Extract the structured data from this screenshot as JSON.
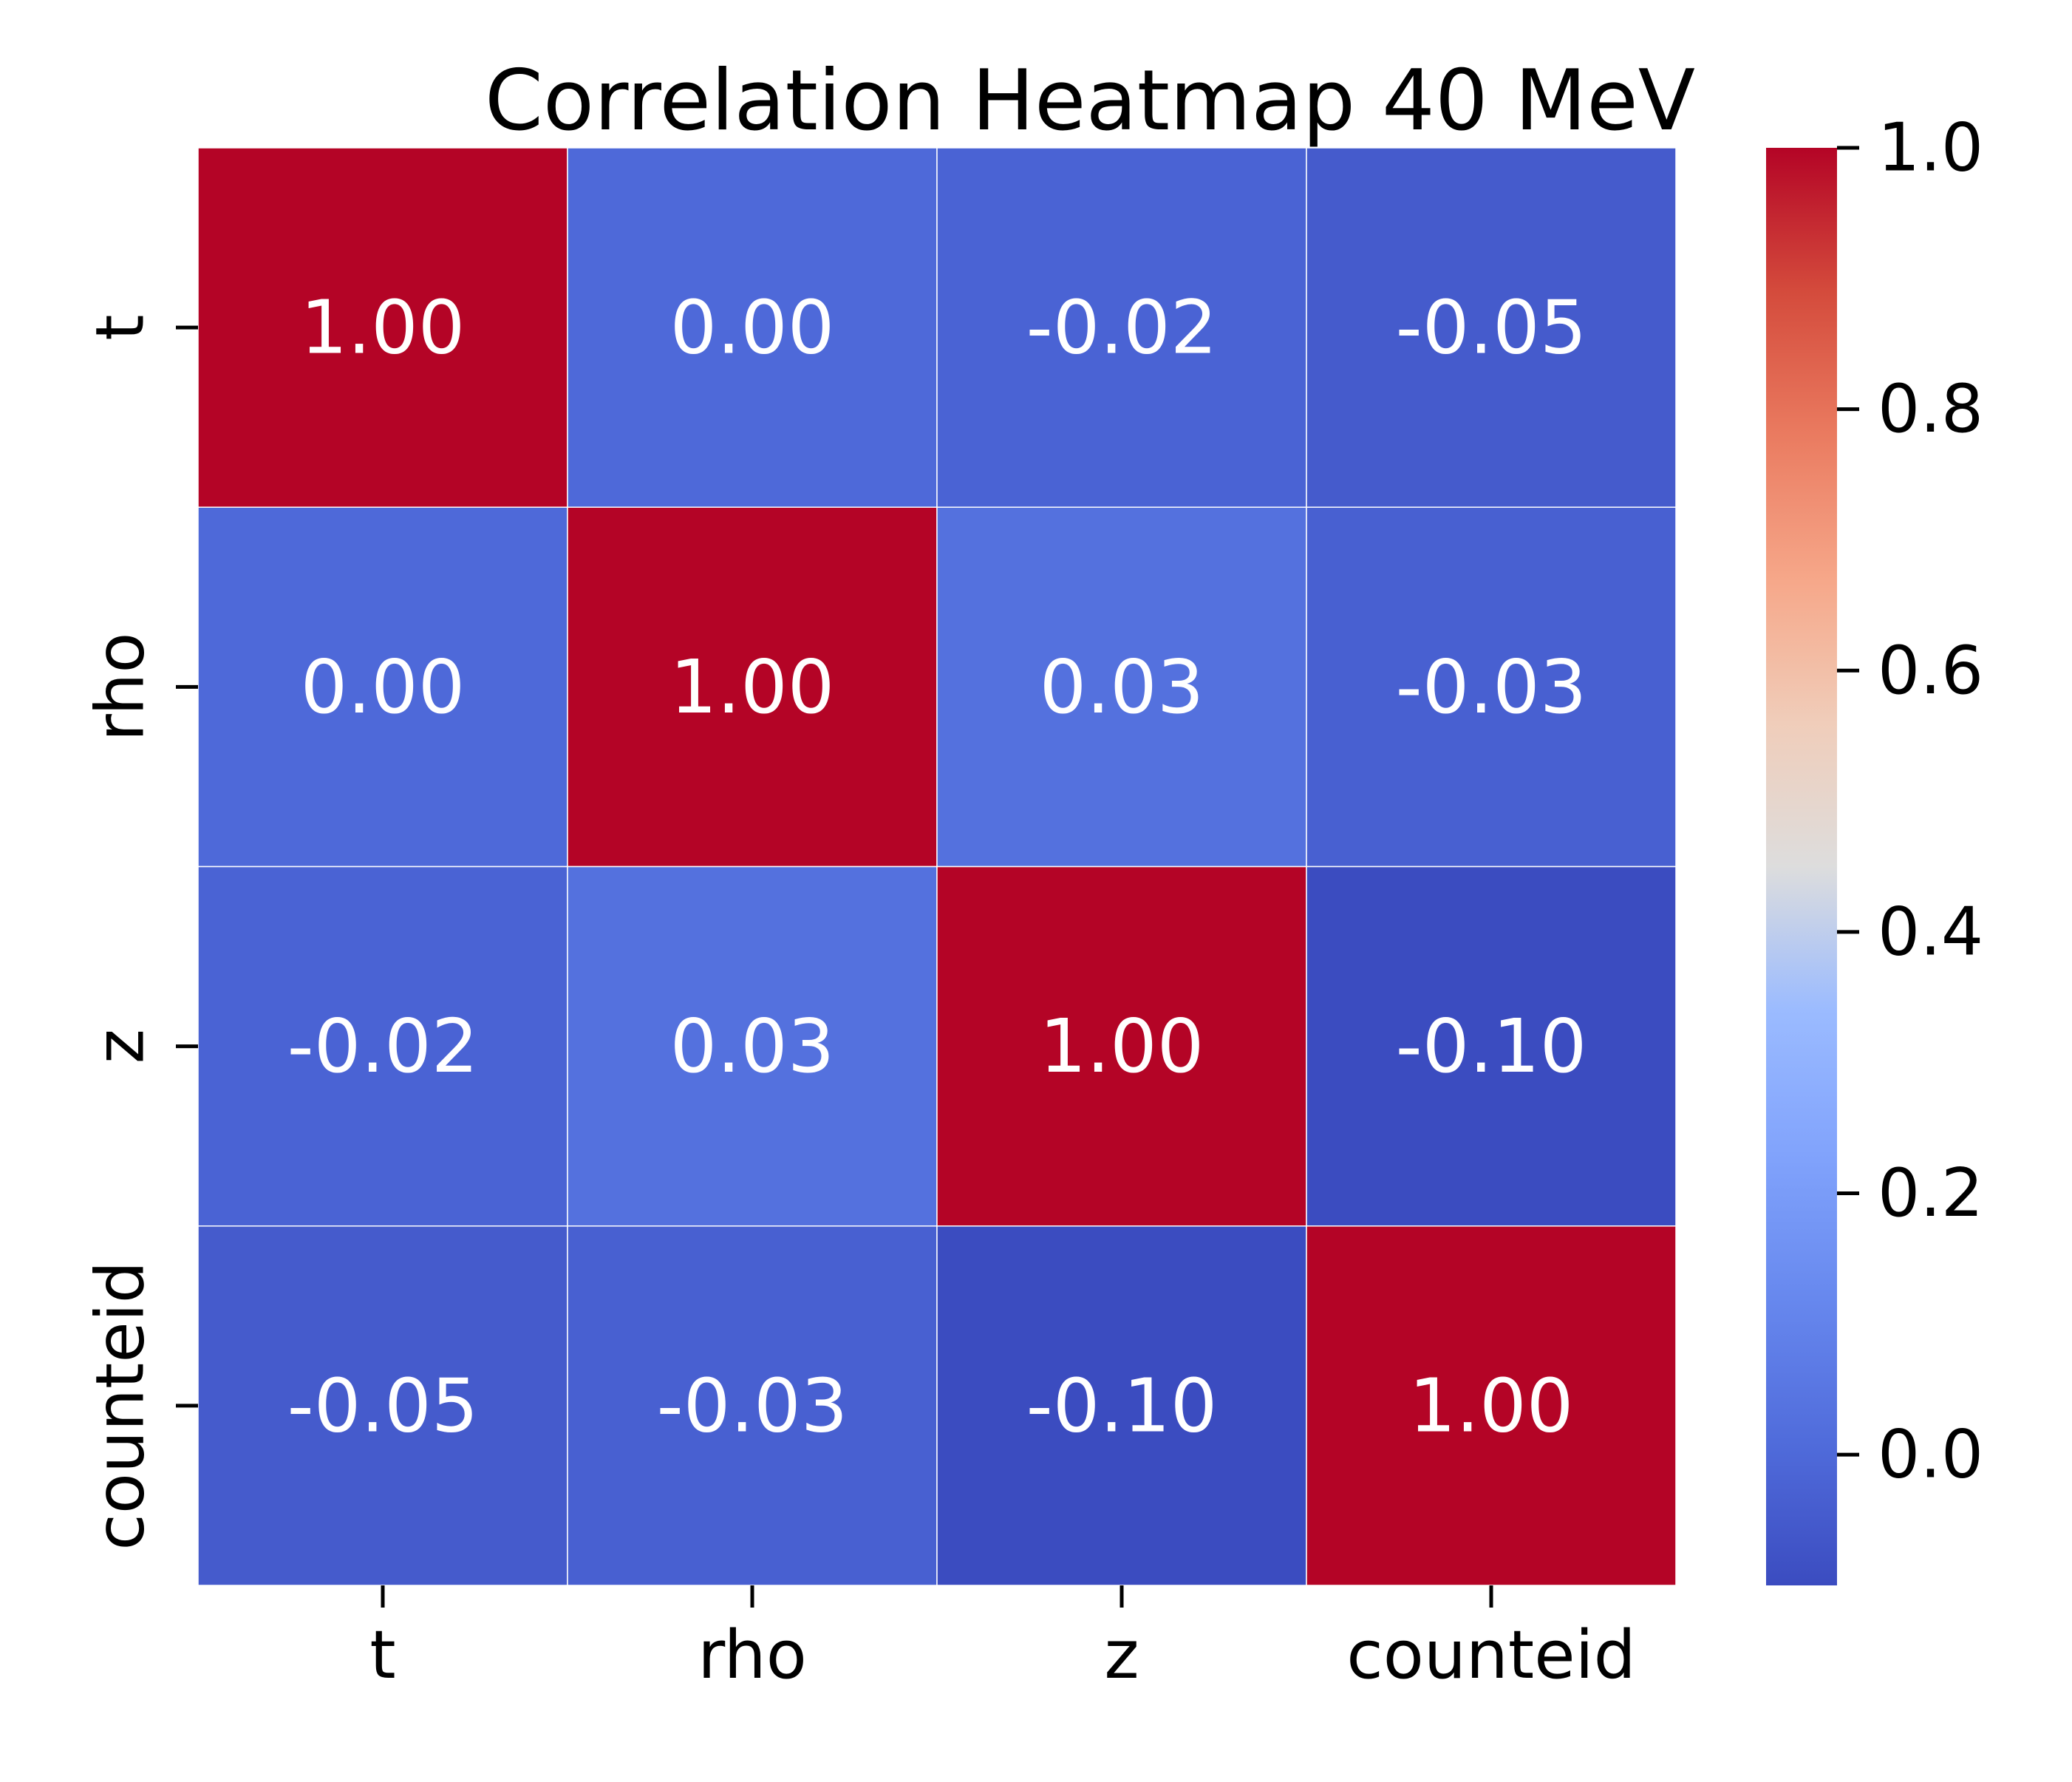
{
  "chart_data": {
    "type": "heatmap",
    "title": "Correlation Heatmap 40 MeV",
    "xlabel": "",
    "ylabel": "",
    "x_categories": [
      "t",
      "rho",
      "z",
      "counteid"
    ],
    "y_categories": [
      "t",
      "rho",
      "z",
      "counteid"
    ],
    "matrix": [
      [
        1.0,
        0.0,
        -0.02,
        -0.05
      ],
      [
        0.0,
        1.0,
        0.03,
        -0.03
      ],
      [
        -0.02,
        0.03,
        1.0,
        -0.1
      ],
      [
        -0.05,
        -0.03,
        -0.1,
        1.0
      ]
    ],
    "annotation_format": "2 decimals",
    "colormap": "coolwarm",
    "value_range": [
      -0.1,
      1.0
    ],
    "colorbar": {
      "ticks": [
        0.0,
        0.2,
        0.4,
        0.6,
        0.8,
        1.0
      ],
      "tick_labels": [
        "0.0",
        "0.2",
        "0.4",
        "0.6",
        "0.8",
        "1.0"
      ],
      "position": "right"
    },
    "annotation_color": "#ffffff",
    "cell_border_color": "#ffffff"
  }
}
